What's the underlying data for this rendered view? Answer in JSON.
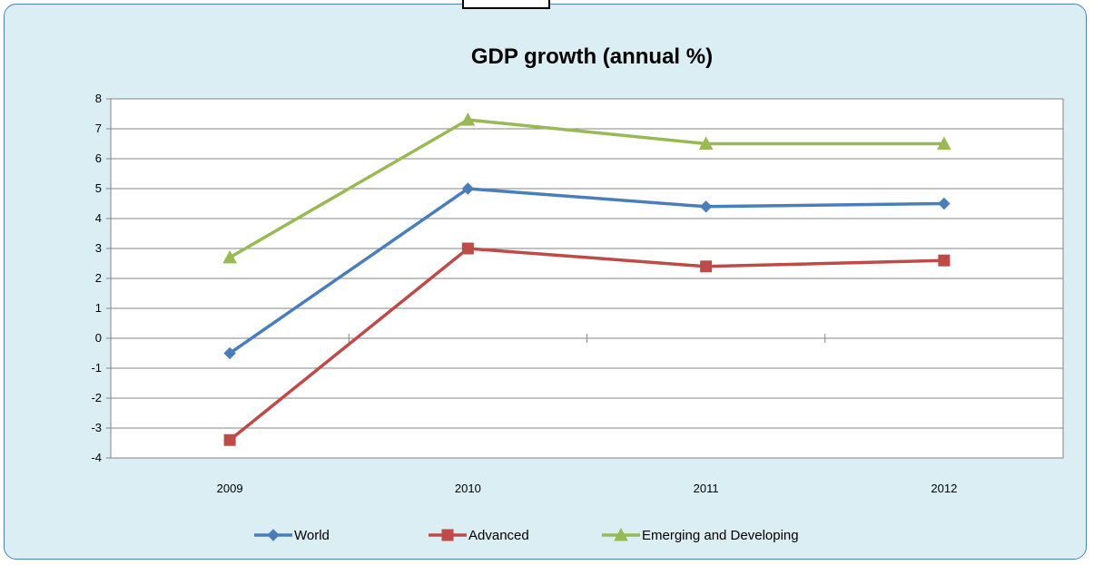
{
  "chart_data": {
    "type": "line",
    "title": "GDP growth (annual %)",
    "xlabel": "",
    "ylabel": "",
    "categories": [
      "2009",
      "2010",
      "2011",
      "2012"
    ],
    "ylim": [
      -4,
      8
    ],
    "yticks": [
      8,
      7,
      6,
      5,
      4,
      3,
      2,
      1,
      0,
      -1,
      -2,
      -3,
      -4
    ],
    "grid": true,
    "legend_position": "bottom",
    "series": [
      {
        "name": "World",
        "values": [
          -0.5,
          5.0,
          4.4,
          4.5
        ],
        "color": "#4a7ebb",
        "marker": "diamond"
      },
      {
        "name": "Advanced",
        "values": [
          -3.4,
          3.0,
          2.4,
          2.6
        ],
        "color": "#be4b48",
        "marker": "square"
      },
      {
        "name": "Emerging and Developing",
        "values": [
          2.7,
          7.3,
          6.5,
          6.5
        ],
        "color": "#98b954",
        "marker": "triangle"
      }
    ]
  }
}
